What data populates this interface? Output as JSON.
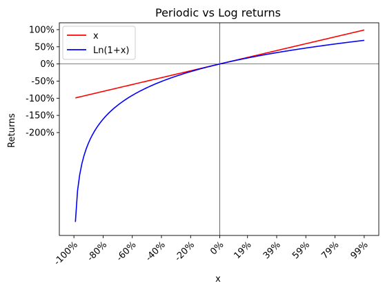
{
  "chart_data": {
    "type": "line",
    "title": "Periodic vs Log returns",
    "xlabel": "x",
    "ylabel": "Returns",
    "xlim": [
      -1.1,
      1.09
    ],
    "ylim": [
      -5.0,
      1.2
    ],
    "x_ticks": [
      -1.0,
      -0.8,
      -0.6,
      -0.4,
      -0.2,
      0.0,
      0.19,
      0.39,
      0.59,
      0.79,
      0.99
    ],
    "x_tick_labels": [
      "-100%",
      "-80%",
      "-60%",
      "-40%",
      "-20%",
      "0%",
      "19%",
      "39%",
      "59%",
      "79%",
      "99%"
    ],
    "y_ticks": [
      1.0,
      0.5,
      0.0,
      -0.5,
      -1.0,
      -1.5,
      -2.0
    ],
    "y_tick_labels": [
      "100%",
      "50%",
      "0%",
      "-50%",
      "-100%",
      "-150%",
      "-200%"
    ],
    "reference_lines": {
      "x": 0,
      "y": 0
    },
    "grid": false,
    "legend_position": "top-left",
    "series": [
      {
        "name": "x",
        "color": "#ff0000",
        "function": "x",
        "x_range": [
          -0.99,
          0.99
        ]
      },
      {
        "name": "Ln(1+x)",
        "color": "#0000ff",
        "function": "ln(1+x)",
        "x_range": [
          -0.99,
          0.99
        ]
      }
    ]
  }
}
